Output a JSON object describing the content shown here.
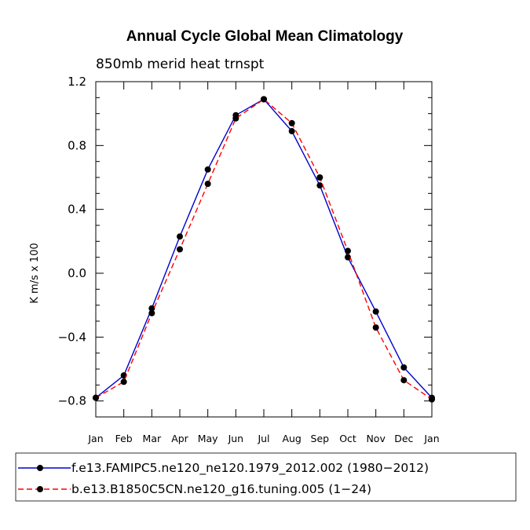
{
  "chart_data": {
    "type": "line",
    "title": "Annual Cycle Global Mean Climatology",
    "subtitle": "850mb merid heat trnspt",
    "xlabel": "",
    "ylabel": "K m/s x 100",
    "ylim": [
      -0.9,
      1.2
    ],
    "y_tick_values": [
      -0.8,
      -0.4,
      0.0,
      0.4,
      0.8,
      1.2
    ],
    "y_tick_labels": [
      "−0.8",
      "−0.4",
      "0.0",
      "0.4",
      "0.8",
      "1.2"
    ],
    "categories": [
      "Jan",
      "Feb",
      "Mar",
      "Apr",
      "May",
      "Jun",
      "Jul",
      "Aug",
      "Sep",
      "Oct",
      "Nov",
      "Dec",
      "Jan"
    ],
    "series": [
      {
        "name": "f.e13.FAMIPC5.ne120_ne120.1979_2012.002 (1980−2012)",
        "color": "#0000cc",
        "dash": "solid",
        "values": [
          -0.78,
          -0.64,
          -0.22,
          0.23,
          0.65,
          0.99,
          1.09,
          0.89,
          0.55,
          0.1,
          -0.24,
          -0.59,
          -0.78
        ]
      },
      {
        "name": "b.e13.B1850C5CN.ne120_g16.tuning.005 (1−24)",
        "color": "#ff0000",
        "dash": "dashed",
        "values": [
          -0.78,
          -0.68,
          -0.25,
          0.15,
          0.56,
          0.97,
          1.09,
          0.94,
          0.6,
          0.14,
          -0.34,
          -0.67,
          -0.79
        ]
      }
    ]
  }
}
